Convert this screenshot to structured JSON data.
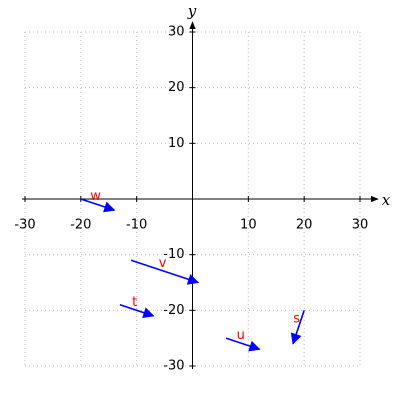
{
  "chart_data": {
    "type": "vector",
    "xlabel": "x",
    "ylabel": "y",
    "xlim": [
      -30,
      30
    ],
    "ylim": [
      -30,
      30
    ],
    "xticks": [
      -30,
      -20,
      -10,
      10,
      20,
      30
    ],
    "yticks": [
      -30,
      -20,
      -10,
      10,
      20,
      30
    ],
    "grid": true,
    "color": "#0000ff",
    "label_color": "#ff0000",
    "series": [
      {
        "name": "w",
        "x": [
          -20,
          -14
        ],
        "y": [
          0,
          -2
        ]
      },
      {
        "name": "v",
        "x": [
          -11,
          1
        ],
        "y": [
          -11,
          -15
        ]
      },
      {
        "name": "t",
        "x": [
          -13,
          -7
        ],
        "y": [
          -19,
          -21
        ]
      },
      {
        "name": "u",
        "x": [
          6,
          12
        ],
        "y": [
          -25,
          -27
        ]
      },
      {
        "name": "s",
        "x": [
          20,
          18
        ],
        "y": [
          -20,
          -26
        ]
      }
    ]
  }
}
